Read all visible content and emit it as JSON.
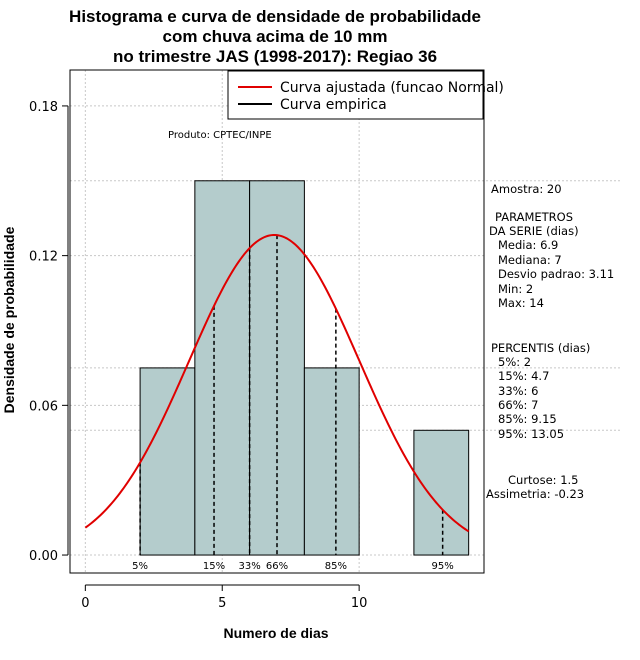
{
  "chart_data": {
    "type": "bar",
    "title": [
      "Histograma e curva de densidade de probabilidade",
      "com chuva acima de 10 mm",
      "no trimestre JAS (1998-2017): Regiao 36"
    ],
    "xlabel": "Numero de dias",
    "ylabel": "Densidade de probabilidade",
    "credit": "Produto: CPTEC/INPE",
    "xlim": [
      -0.56,
      14.56
    ],
    "ylim": [
      -0.0072,
      0.1944
    ],
    "xticks": [
      0,
      5,
      10
    ],
    "yticks": [
      "0.00",
      "0.06",
      "0.12",
      "0.18"
    ],
    "ytick_values": [
      0,
      0.06,
      0.12,
      0.18
    ],
    "grid": true,
    "bins": [
      {
        "from": 2,
        "to": 4,
        "density": 0.075
      },
      {
        "from": 4,
        "to": 6,
        "density": 0.15
      },
      {
        "from": 6,
        "to": 8,
        "density": 0.15
      },
      {
        "from": 8,
        "to": 10,
        "density": 0.075
      },
      {
        "from": 10,
        "to": 12,
        "density": 0.0
      },
      {
        "from": 12,
        "to": 14,
        "density": 0.05
      }
    ],
    "bar_color": "#b4cccc",
    "curve_color": "#e00000",
    "normal_fit": {
      "mean": 6.9,
      "sd": 3.11,
      "x_range": [
        0,
        14
      ]
    },
    "percentile_lines": [
      {
        "label": "5%",
        "x": 2
      },
      {
        "label": "15%",
        "x": 4.7
      },
      {
        "label": "33%",
        "x": 6
      },
      {
        "label": "66%",
        "x": 7
      },
      {
        "label": "85%",
        "x": 9.15
      },
      {
        "label": "95%",
        "x": 13.05
      }
    ],
    "legend": {
      "position": "top-right",
      "entries": [
        {
          "label": "Curva ajustada (funcao Normal)",
          "color": "#e00000"
        },
        {
          "label": "Curva empirica",
          "color": "#000000"
        }
      ]
    },
    "stats": {
      "amostra": "Amostra: 20",
      "parametros_title": "PARAMETROS",
      "parametros_sub": "DA SERIE (dias)",
      "media": "Media: 6.9",
      "mediana": "Mediana: 7",
      "desvio": "Desvio padrao: 3.11",
      "min": "Min: 2",
      "max": "Max: 14",
      "percentis_title": "PERCENTIS (dias)",
      "p5": "5%: 2",
      "p15": "15%: 4.7",
      "p33": "33%: 6",
      "p66": "66%: 7",
      "p85": "85%: 9.15",
      "p95": "95%: 13.05",
      "curtose": "Curtose: 1.5",
      "assimetria": "Assimetria: -0.23"
    }
  }
}
